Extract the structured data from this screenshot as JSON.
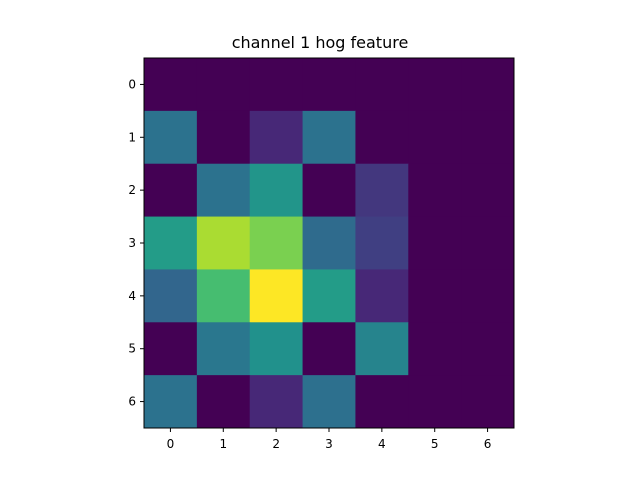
{
  "chart_data": {
    "type": "heatmap",
    "title": "channel 1 hog feature",
    "xlabel": "",
    "ylabel": "",
    "x_ticks": [
      "0",
      "1",
      "2",
      "3",
      "4",
      "5",
      "6"
    ],
    "y_ticks": [
      "0",
      "1",
      "2",
      "3",
      "4",
      "5",
      "6"
    ],
    "colormap": "viridis",
    "vmin": 0,
    "vmax": 1,
    "values": [
      [
        0.0,
        0.0,
        0.0,
        0.0,
        0.0,
        0.0,
        0.0
      ],
      [
        0.38,
        0.0,
        0.14,
        0.38,
        0.0,
        0.0,
        0.0
      ],
      [
        0.0,
        0.38,
        0.52,
        0.0,
        0.18,
        0.0,
        0.0
      ],
      [
        0.55,
        0.88,
        0.8,
        0.35,
        0.2,
        0.0,
        0.0
      ],
      [
        0.33,
        0.7,
        1.0,
        0.55,
        0.14,
        0.0,
        0.0
      ],
      [
        0.0,
        0.4,
        0.5,
        0.0,
        0.45,
        0.0,
        0.0
      ],
      [
        0.38,
        0.0,
        0.14,
        0.37,
        0.0,
        0.0,
        0.0
      ]
    ]
  }
}
